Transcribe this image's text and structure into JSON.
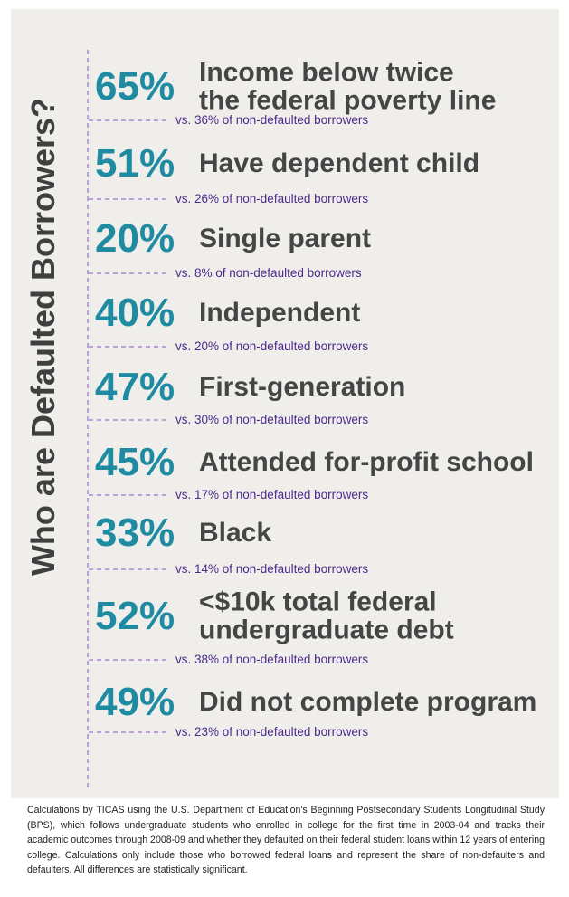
{
  "title": "Who are Defaulted Borrowers?",
  "items": [
    {
      "percent": "65%",
      "label_lines": [
        "Income below twice",
        "the federal poverty line"
      ],
      "comparison": "vs. 36% of non-defaulted borrowers"
    },
    {
      "percent": "51%",
      "label_lines": [
        "Have dependent child"
      ],
      "comparison": "vs. 26% of non-defaulted borrowers"
    },
    {
      "percent": "20%",
      "label_lines": [
        "Single parent"
      ],
      "comparison": "vs. 8% of non-defaulted borrowers"
    },
    {
      "percent": "40%",
      "label_lines": [
        "Independent"
      ],
      "comparison": "vs. 20% of non-defaulted borrowers"
    },
    {
      "percent": "47%",
      "label_lines": [
        "First-generation"
      ],
      "comparison": "vs. 30% of non-defaulted borrowers"
    },
    {
      "percent": "45%",
      "label_lines": [
        "Attended for-profit school"
      ],
      "comparison": "vs. 17% of non-defaulted borrowers"
    },
    {
      "percent": "33%",
      "label_lines": [
        "Black"
      ],
      "comparison": "vs. 14% of non-defaulted borrowers"
    },
    {
      "percent": "52%",
      "label_lines": [
        "<$10k total federal",
        "undergraduate debt"
      ],
      "comparison": "vs. 38% of non-defaulted borrowers"
    },
    {
      "percent": "49%",
      "label_lines": [
        "Did not complete program"
      ],
      "comparison": "vs. 23% of non-defaulted borrowers"
    }
  ],
  "footnote": "Calculations by TICAS using the U.S. Department of Education's Beginning Postsecondary Students Longitudinal Study (BPS), which follows undergraduate students who enrolled in college for the first time in 2003-04 and tracks their academic outcomes through 2008-09 and whether they defaulted on their federal student loans within 12 years of entering college. Calculations only include those who borrowed federal loans and represent the share of non-defaulters and defaulters. All differences are statistically significant."
}
